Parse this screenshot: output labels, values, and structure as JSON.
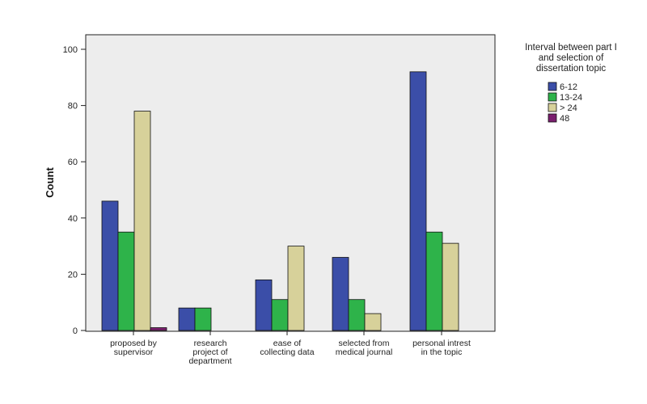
{
  "chart_data": {
    "type": "bar",
    "ylabel": "Count",
    "ylim": [
      0,
      100
    ],
    "yticks": [
      0,
      20,
      40,
      60,
      80,
      100
    ],
    "grid": false,
    "legend_position": "right",
    "legend_title": [
      "Interval between part I",
      "and selection of",
      "dissertation topic"
    ],
    "categories": [
      [
        "proposed by",
        "supervisor"
      ],
      [
        "research",
        "project of",
        "department"
      ],
      [
        "ease of",
        "collecting data"
      ],
      [
        "selected from",
        "medical journal"
      ],
      [
        "personal intrest",
        "in the topic"
      ]
    ],
    "series": [
      {
        "name": "6-12",
        "color": "#3b4ea8",
        "values": [
          46,
          8,
          18,
          26,
          92
        ]
      },
      {
        "name": "13-24",
        "color": "#2eb34a",
        "values": [
          35,
          8,
          11,
          11,
          35
        ]
      },
      {
        "name": "> 24",
        "color": "#d7d19a",
        "values": [
          78,
          0,
          30,
          6,
          31
        ]
      },
      {
        "name": "48",
        "color": "#7a1f6e",
        "values": [
          1,
          0,
          0,
          0,
          0
        ]
      }
    ],
    "plot_background": "#ededed"
  }
}
